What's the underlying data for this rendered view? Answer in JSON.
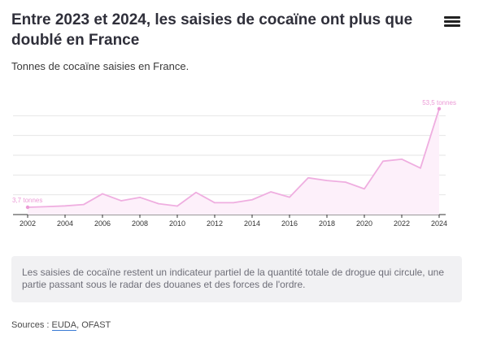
{
  "header": {
    "title": "Entre 2023 et 2024, les saisies de cocaïne ont plus que doublé en France",
    "menu_icon": "hamburger-menu-icon"
  },
  "chart_data": {
    "type": "area",
    "title": "Entre 2023 et 2024, les saisies de cocaïne ont plus que doublé en France",
    "subtitle": "Tonnes de cocaïne saisies en France.",
    "xlabel": "",
    "ylabel": "",
    "x": [
      2002,
      2003,
      2004,
      2005,
      2006,
      2007,
      2008,
      2009,
      2010,
      2011,
      2012,
      2013,
      2014,
      2015,
      2016,
      2017,
      2018,
      2019,
      2020,
      2021,
      2022,
      2023,
      2024
    ],
    "series": [
      {
        "values": [
          3.7,
          4.0,
          4.4,
          5.1,
          10.5,
          7.0,
          8.7,
          5.5,
          4.3,
          11.2,
          6.0,
          6.0,
          7.5,
          11.5,
          8.8,
          18.6,
          17.2,
          16.4,
          13.0,
          27.0,
          28.0,
          23.5,
          53.5
        ]
      }
    ],
    "xticks": [
      "2002",
      "2004",
      "2006",
      "2008",
      "2010",
      "2012",
      "2014",
      "2016",
      "2018",
      "2020",
      "2022",
      "2024"
    ],
    "xlim": [
      2002,
      2024
    ],
    "ylim": [
      0,
      60
    ],
    "grid": true,
    "legend": "none",
    "annotations": [
      {
        "x": 2002,
        "y": 3.7,
        "text": "3,7 tonnes"
      },
      {
        "x": 2024,
        "y": 53.5,
        "text": "53,5 tonnes"
      }
    ],
    "colors": {
      "line": "#efaee0",
      "fill": "#fdf0fa",
      "label": "#ec9ad6",
      "grid": "#e6e6e6",
      "axis": "#333333"
    }
  },
  "note": {
    "text": "Les saisies de cocaïne restent un indicateur partiel de la quantité totale de drogue qui circule, une partie passant sous le radar des douanes et des forces de l'ordre."
  },
  "sources": {
    "label": "Sources : ",
    "links": [
      "EUDA"
    ],
    "separator": ", ",
    "rest": "OFAST"
  }
}
